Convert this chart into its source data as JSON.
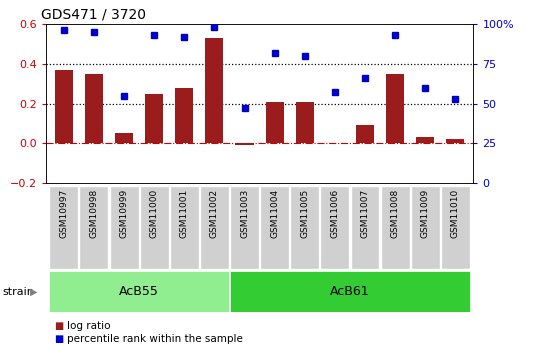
{
  "title": "GDS471 / 3720",
  "samples": [
    "GSM10997",
    "GSM10998",
    "GSM10999",
    "GSM11000",
    "GSM11001",
    "GSM11002",
    "GSM11003",
    "GSM11004",
    "GSM11005",
    "GSM11006",
    "GSM11007",
    "GSM11008",
    "GSM11009",
    "GSM11010"
  ],
  "log_ratio": [
    0.37,
    0.35,
    0.05,
    0.25,
    0.28,
    0.53,
    -0.01,
    0.21,
    0.21,
    0.0,
    0.09,
    0.35,
    0.03,
    0.02
  ],
  "percentile_rank": [
    96,
    95,
    55,
    93,
    92,
    98,
    47,
    82,
    80,
    57,
    66,
    93,
    60,
    53
  ],
  "bar_color": "#9B1C1C",
  "dot_color": "#0000CC",
  "groups": [
    {
      "label": "AcB55",
      "start": 0,
      "end": 6,
      "color": "#90EE90"
    },
    {
      "label": "AcB61",
      "start": 6,
      "end": 14,
      "color": "#33CC33"
    }
  ],
  "ylim": [
    -0.2,
    0.6
  ],
  "yticks_left": [
    -0.2,
    0.0,
    0.2,
    0.4,
    0.6
  ],
  "yticks_right": [
    0,
    25,
    50,
    75,
    100
  ],
  "hlines": [
    0.2,
    0.4
  ],
  "hline_zero_color": "#CC0000",
  "dotted_line_color": "black",
  "strain_label": "strain",
  "legend_items": [
    {
      "label": "log ratio",
      "color": "#9B1C1C"
    },
    {
      "label": "percentile rank within the sample",
      "color": "#0000CC"
    }
  ]
}
